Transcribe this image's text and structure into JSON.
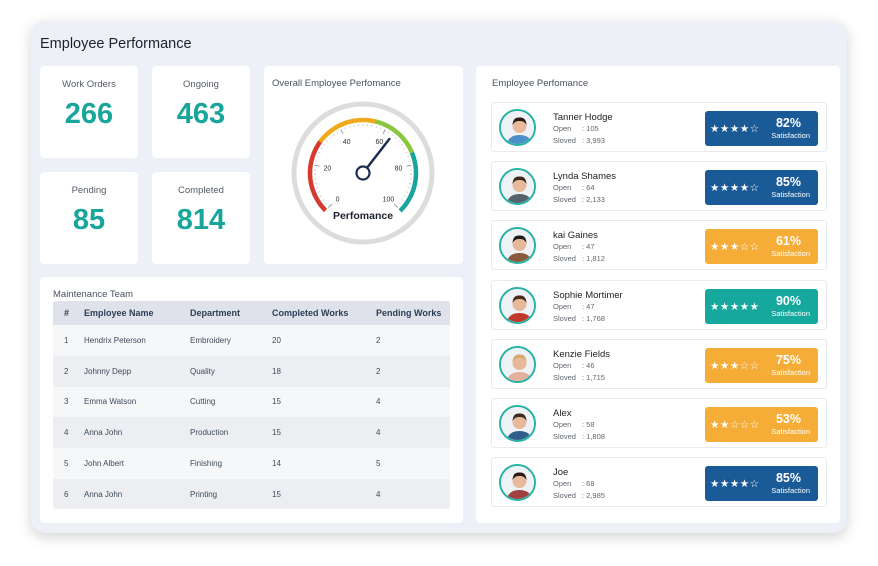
{
  "app": {
    "title": "Employee Performance"
  },
  "stats": [
    {
      "label": "Work Orders",
      "value": "266"
    },
    {
      "label": "Ongoing",
      "value": "463"
    },
    {
      "label": "Pending",
      "value": "85"
    },
    {
      "label": "Completed",
      "value": "814"
    }
  ],
  "gauge": {
    "title": "Overall Employee Perfomance",
    "label": "Perfomance",
    "ticks": [
      "0",
      "20",
      "40",
      "60",
      "80",
      "100"
    ],
    "value": 64,
    "colors": {
      "low": "#d63a2f",
      "mid": "#f0a91c",
      "good": "#8cc63f",
      "high": "#17a59c",
      "needle": "#1c2f52"
    }
  },
  "team": {
    "title": "Maintenance Team",
    "columns": [
      "#",
      "Employee Name",
      "Department",
      "Completed Works",
      "Pending Works"
    ],
    "rows": [
      [
        "1",
        "Hendrix Peterson",
        "Embroidery",
        "20",
        "2"
      ],
      [
        "2",
        "Johnny Depp",
        "Quality",
        "18",
        "2"
      ],
      [
        "3",
        "Emma Watson",
        "Cutting",
        "15",
        "4"
      ],
      [
        "4",
        "Anna John",
        "Production",
        "15",
        "4"
      ],
      [
        "5",
        "John Albert",
        "Finishing",
        "14",
        "5"
      ],
      [
        "6",
        "Anna John",
        "Printing",
        "15",
        "4"
      ]
    ]
  },
  "employees": {
    "title": "Employee Perfomance",
    "open_label": "Open",
    "solved_label": "Sloved",
    "satisfaction_label": "Satisfaction",
    "list": [
      {
        "name": "Tanner Hodge",
        "open": ": 105",
        "solved": ": 3,993",
        "percent": "82%",
        "stars": "★★★★☆",
        "color": "#1a5a96",
        "rating": 4
      },
      {
        "name": "Lynda Shames",
        "open": ": 64",
        "solved": ": 2,133",
        "percent": "85%",
        "stars": "★★★★☆",
        "color": "#1a5a96",
        "rating": 4
      },
      {
        "name": "kai Gaines",
        "open": ": 47",
        "solved": ": 1,812",
        "percent": "61%",
        "stars": "★★★☆☆",
        "color": "#f6ad38",
        "rating": 3
      },
      {
        "name": "Sophie Mortimer",
        "open": ": 47",
        "solved": ": 1,768",
        "percent": "90%",
        "stars": "★★★★★",
        "color": "#17a89d",
        "rating": 5
      },
      {
        "name": "Kenzie Fields",
        "open": ": 46",
        "solved": ": 1,715",
        "percent": "75%",
        "stars": "★★★☆☆",
        "color": "#f6ad38",
        "rating": 3
      },
      {
        "name": "Alex",
        "open": ": 58",
        "solved": ": 1,808",
        "percent": "53%",
        "stars": "★★☆☆☆",
        "color": "#f6ad38",
        "rating": 2
      },
      {
        "name": "Joe",
        "open": ": 68",
        "solved": ": 2,985",
        "percent": "85%",
        "stars": "★★★★☆",
        "color": "#1a5a96",
        "rating": 4
      }
    ]
  }
}
